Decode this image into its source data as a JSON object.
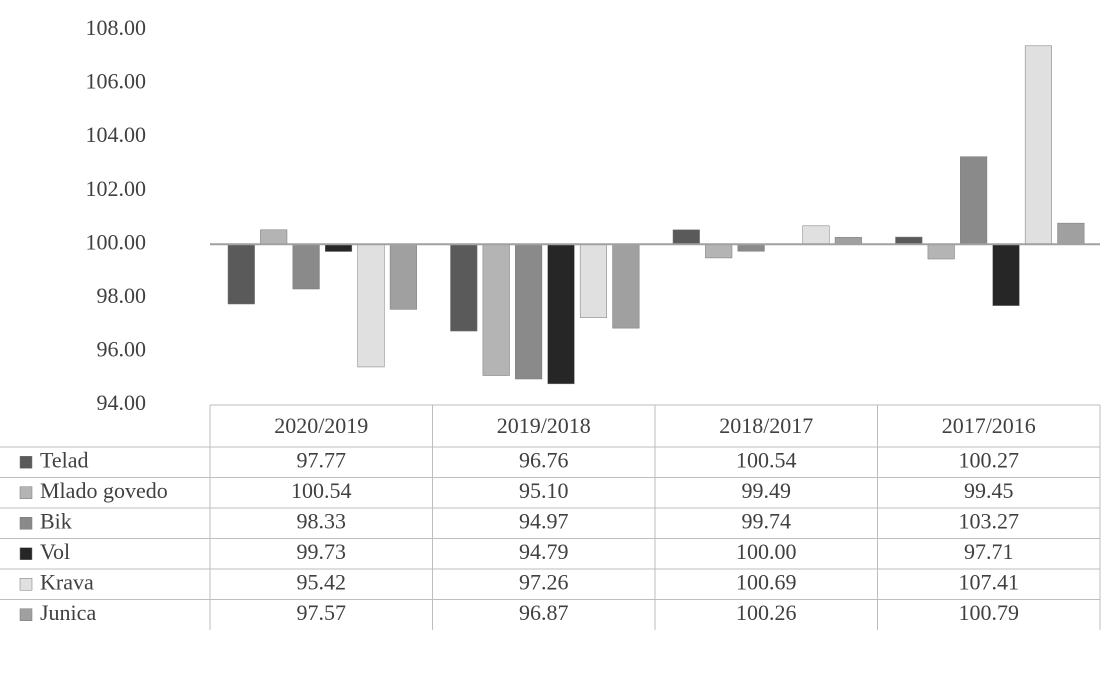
{
  "chart_data": {
    "type": "bar",
    "categories": [
      "2020/2019",
      "2019/2018",
      "2018/2017",
      "2017/2016"
    ],
    "series": [
      {
        "name": "Telad",
        "color": "#5a5a5a",
        "values": [
          97.77,
          96.76,
          100.54,
          100.27
        ],
        "value_labels": [
          "97.77",
          "96.76",
          "100.54",
          "100.27"
        ]
      },
      {
        "name": "Mlado govedo",
        "color": "#b4b4b4",
        "values": [
          100.54,
          95.1,
          99.49,
          99.45
        ],
        "value_labels": [
          "100.54",
          "95.10",
          "99.49",
          "99.45"
        ]
      },
      {
        "name": "Bik",
        "color": "#8a8a8a",
        "values": [
          98.33,
          94.97,
          99.74,
          103.27
        ],
        "value_labels": [
          "98.33",
          "94.97",
          "99.74",
          "103.27"
        ]
      },
      {
        "name": "Vol",
        "color": "#262626",
        "values": [
          99.73,
          94.79,
          100,
          97.71
        ],
        "value_labels": [
          "99.73",
          "94.79",
          "100.00",
          "97.71"
        ]
      },
      {
        "name": "Krava",
        "color": "#e0e0e0",
        "values": [
          95.42,
          97.26,
          100.69,
          107.41
        ],
        "value_labels": [
          "95.42",
          "97.26",
          "100.69",
          "107.41"
        ]
      },
      {
        "name": "Junica",
        "color": "#a0a0a0",
        "values": [
          97.57,
          96.87,
          100.26,
          100.79
        ],
        "value_labels": [
          "97.57",
          "96.87",
          "100.26",
          "100.79"
        ]
      }
    ],
    "ylim": [
      94,
      108
    ],
    "yticks": [
      {
        "value": 94,
        "label": "94.00"
      },
      {
        "value": 96,
        "label": "96.00"
      },
      {
        "value": 98,
        "label": "98.00"
      },
      {
        "value": 100,
        "label": "100.00"
      },
      {
        "value": 102,
        "label": "102.00"
      },
      {
        "value": 104,
        "label": "104.00"
      },
      {
        "value": 106,
        "label": "106.00"
      },
      {
        "value": 108,
        "label": "108.00"
      }
    ],
    "axis_crossing": 100,
    "grid": false,
    "data_table": true
  }
}
